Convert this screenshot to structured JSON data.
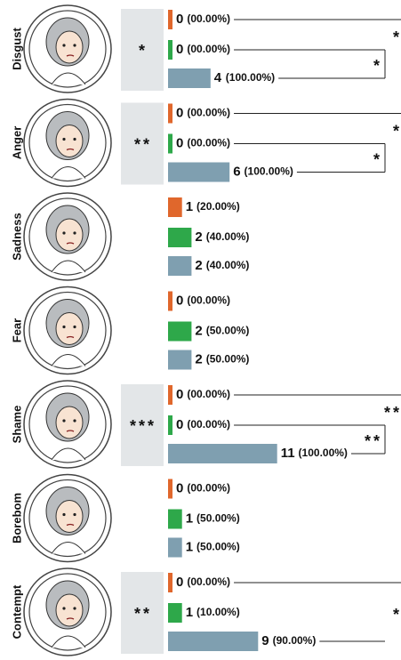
{
  "chart_data": {
    "type": "bar",
    "series_colors": [
      "#e0672c",
      "#2ea84a",
      "#7f9fb0"
    ],
    "groups": [
      {
        "label": "Disgust",
        "significance": "*",
        "counts": [
          0,
          0,
          4
        ],
        "percents": [
          "(00.00%)",
          "(00.00%)",
          "(100.00%)"
        ],
        "right_stars": [
          "*",
          "*"
        ]
      },
      {
        "label": "Anger",
        "significance": "**",
        "counts": [
          0,
          0,
          6
        ],
        "percents": [
          "(00.00%)",
          "(00.00%)",
          "(100.00%)"
        ],
        "right_stars": [
          "*",
          "*"
        ]
      },
      {
        "label": "Sadness",
        "counts": [
          1,
          2,
          2
        ],
        "percents": [
          "(20.00%)",
          "(40.00%)",
          "(40.00%)"
        ]
      },
      {
        "label": "Fear",
        "counts": [
          0,
          2,
          2
        ],
        "percents": [
          "(00.00%)",
          "(50.00%)",
          "(50.00%)"
        ]
      },
      {
        "label": "Shame",
        "significance": "***",
        "counts": [
          0,
          0,
          11
        ],
        "percents": [
          "(00.00%)",
          "(00.00%)",
          "(100.00%)"
        ],
        "right_stars": [
          "**",
          "**"
        ]
      },
      {
        "label": "Borebom",
        "counts": [
          0,
          1,
          1
        ],
        "percents": [
          "(00.00%)",
          "(50.00%)",
          "(50.00%)"
        ]
      },
      {
        "label": "Contempt",
        "significance": "**",
        "counts": [
          0,
          1,
          9
        ],
        "percents": [
          "(00.00%)",
          "(10.00%)",
          "(90.00%)"
        ],
        "right_stars": [
          "*"
        ]
      }
    ]
  }
}
